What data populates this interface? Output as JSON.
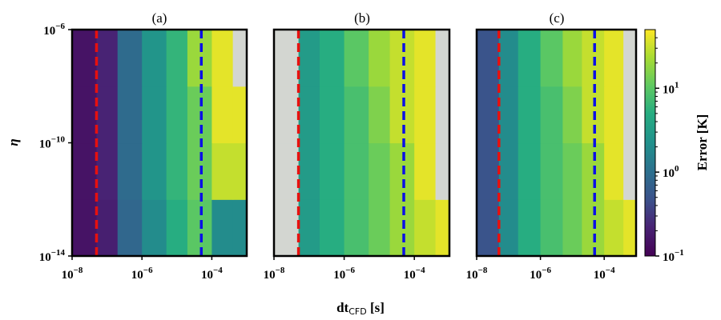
{
  "chart_data": {
    "type": "heatmap",
    "xlabel": "dt",
    "xlabel_sub": "CFD",
    "xlabel_unit": " [s]",
    "ylabel": "η",
    "x_scale": "log",
    "y_scale": "log",
    "xlim": [
      1e-08,
      0.001
    ],
    "ylim": [
      1e-14,
      1e-06
    ],
    "x_ticks": [
      {
        "exp": "−8"
      },
      {
        "exp": "−6"
      },
      {
        "exp": "−4"
      }
    ],
    "y_ticks": [
      {
        "exp": "−6"
      },
      {
        "exp": "−10"
      },
      {
        "exp": "−14"
      }
    ],
    "x_edges": [
      1e-08,
      5e-08,
      2e-07,
      1e-06,
      5e-06,
      2e-05,
      0.0001,
      0.0004,
      0.001
    ],
    "y_edges": [
      1e-14,
      1e-12,
      1e-10,
      1e-08,
      1e-06
    ],
    "missing_color": "#d3d6d1",
    "red_line_x": 5e-08,
    "blue_line_x": 5e-05,
    "red_line_color": "#e8100e",
    "blue_line_color": "#0b10e6",
    "colorbar": {
      "label": "Error [K]",
      "scale": "log",
      "range": [
        0.1,
        50
      ],
      "ticks": [
        {
          "base": "10",
          "exp": "−1"
        },
        {
          "base": "10",
          "exp": "0"
        },
        {
          "base": "10",
          "exp": "1"
        }
      ]
    },
    "panels": [
      {
        "title": "(a)",
        "values": [
          [
            0.15,
            0.2,
            0.8,
            2,
            5,
            10,
            2,
            2
          ],
          [
            0.15,
            0.22,
            0.9,
            2.5,
            6,
            12,
            30,
            30
          ],
          [
            0.15,
            0.22,
            0.9,
            2.5,
            6,
            12,
            40,
            40
          ],
          [
            0.15,
            0.22,
            0.9,
            2.5,
            6,
            20,
            40,
            null
          ]
        ]
      },
      {
        "title": "(b)",
        "values": [
          [
            null,
            3,
            5,
            8,
            12,
            20,
            30,
            40
          ],
          [
            null,
            3,
            5,
            8,
            12,
            20,
            40,
            null
          ],
          [
            null,
            3,
            5,
            8,
            15,
            30,
            40,
            null
          ],
          [
            null,
            3,
            5,
            10,
            20,
            30,
            40,
            null
          ]
        ]
      },
      {
        "title": "(c)",
        "values": [
          [
            0.5,
            2,
            5,
            8,
            12,
            20,
            30,
            40
          ],
          [
            0.5,
            2,
            5,
            8,
            12,
            20,
            40,
            null
          ],
          [
            0.5,
            2,
            5,
            8,
            15,
            30,
            40,
            null
          ],
          [
            0.5,
            2,
            5,
            10,
            20,
            30,
            40,
            null
          ]
        ]
      }
    ]
  }
}
